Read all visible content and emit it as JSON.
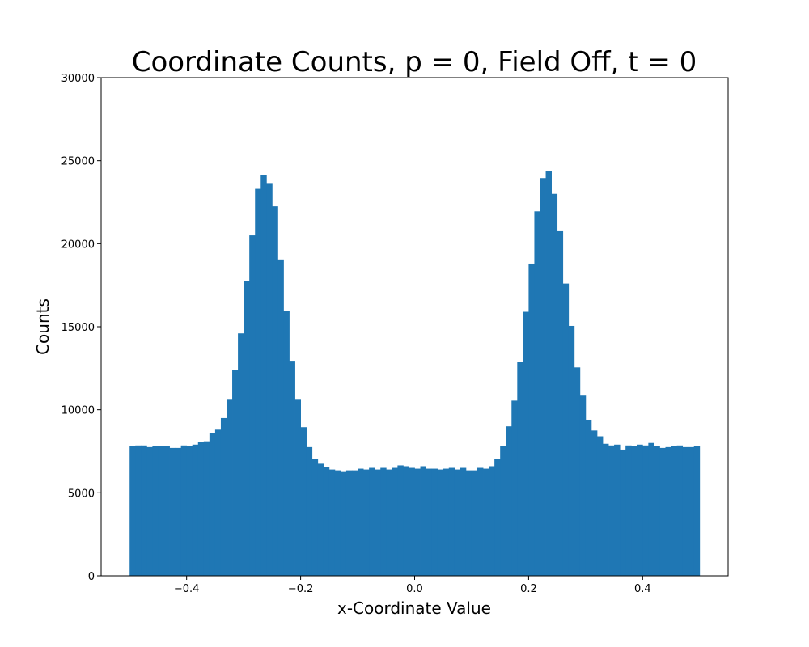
{
  "colors": {
    "bar": "#1f77b4",
    "axis": "#000000",
    "background": "#ffffff"
  },
  "chart_data": {
    "type": "bar",
    "title": "Coordinate Counts, p = 0, Field Off, t = 0",
    "xlabel": "x-Coordinate Value",
    "ylabel": "Counts",
    "xlim": [
      -0.55,
      0.55
    ],
    "ylim": [
      0,
      30000
    ],
    "grid": false,
    "xticks": [
      -0.4,
      -0.2,
      0.0,
      0.2,
      0.4
    ],
    "xtick_labels": [
      "−0.4",
      "−0.2",
      "0.0",
      "0.2",
      "0.4"
    ],
    "yticks": [
      0,
      5000,
      10000,
      15000,
      20000,
      25000,
      30000
    ],
    "ytick_labels": [
      "0",
      "5000",
      "10000",
      "15000",
      "20000",
      "25000",
      "30000"
    ],
    "bin_range": [
      -0.5,
      0.5
    ],
    "bin_count": 100,
    "values": [
      7800,
      7850,
      7850,
      7750,
      7800,
      7800,
      7800,
      7700,
      7700,
      7850,
      7800,
      7900,
      8050,
      8100,
      8600,
      8800,
      9500,
      10650,
      12400,
      14600,
      17750,
      20500,
      23300,
      24150,
      23650,
      22250,
      19050,
      15950,
      12950,
      10650,
      8950,
      7750,
      7050,
      6750,
      6550,
      6400,
      6350,
      6300,
      6350,
      6350,
      6450,
      6400,
      6500,
      6400,
      6500,
      6400,
      6500,
      6650,
      6600,
      6500,
      6450,
      6600,
      6450,
      6450,
      6400,
      6450,
      6500,
      6400,
      6500,
      6350,
      6350,
      6500,
      6450,
      6600,
      7050,
      7800,
      9000,
      10550,
      12900,
      15900,
      18800,
      21950,
      23950,
      24350,
      23000,
      20750,
      17600,
      15050,
      12550,
      10850,
      9400,
      8750,
      8400,
      7950,
      7850,
      7900,
      7600,
      7850,
      7800,
      7900,
      7850,
      8000,
      7800,
      7700,
      7750,
      7800,
      7850,
      7750,
      7750,
      7800
    ]
  }
}
